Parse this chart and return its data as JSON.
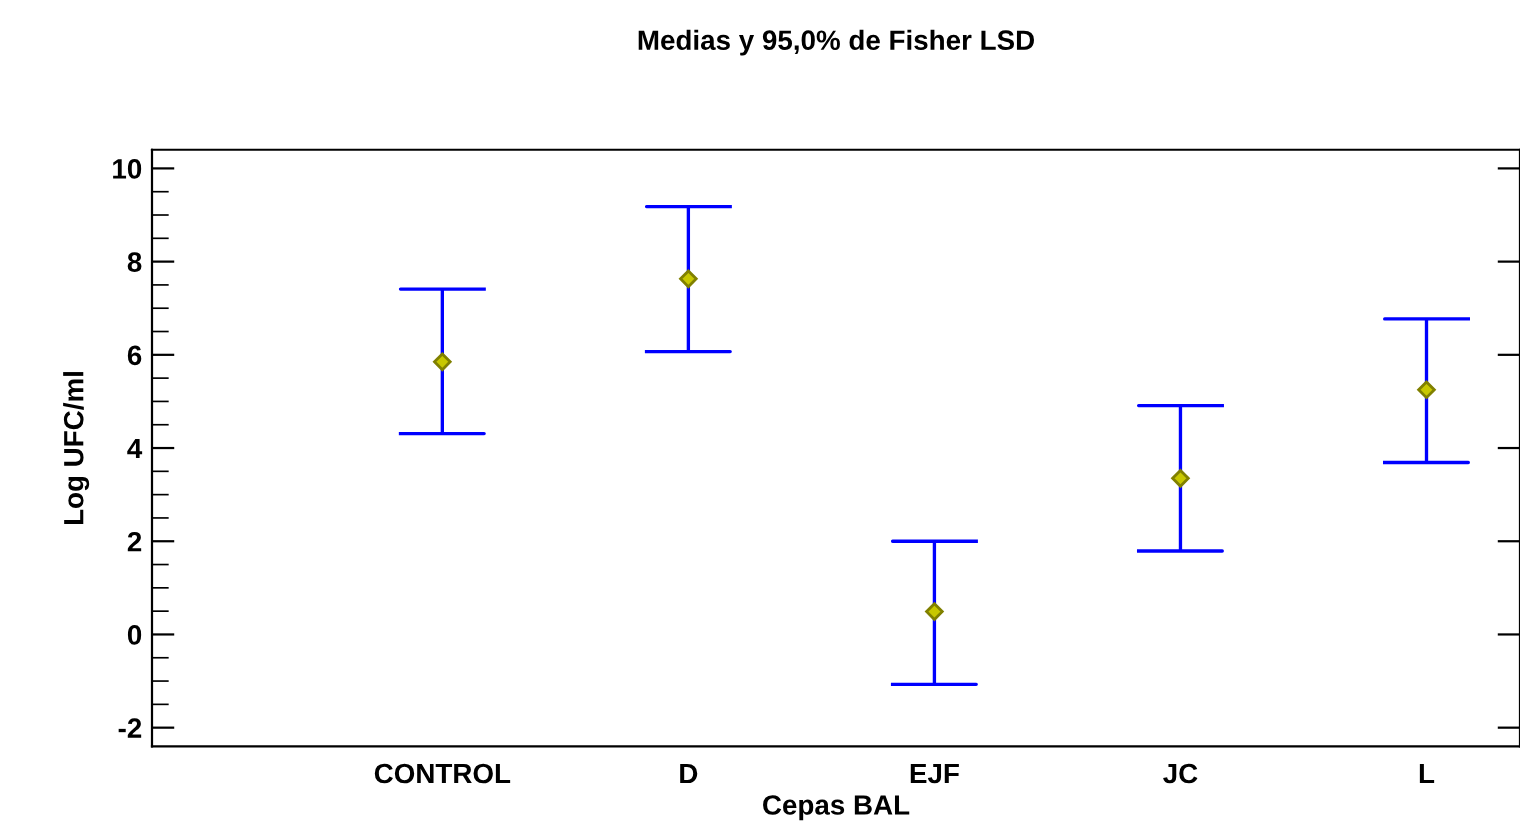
{
  "chart_data": {
    "type": "scatter",
    "title": "Medias y 95,0% de Fisher LSD",
    "xlabel": "Cepas BAL",
    "ylabel": "Log UFC/ml",
    "categories": [
      "CONTROL",
      "D",
      "EJF",
      "JC",
      "L"
    ],
    "values": [
      5.85,
      7.63,
      0.49,
      3.35,
      5.25
    ],
    "errors": [
      [
        4.31,
        7.41
      ],
      [
        6.07,
        9.18
      ],
      [
        -1.07,
        2.0
      ],
      [
        1.79,
        4.91
      ],
      [
        3.69,
        6.77
      ]
    ],
    "color": "#c8c800",
    "ylim": [
      -2.4,
      10.4
    ],
    "yticks": [
      -2,
      0,
      2,
      4,
      6,
      8,
      10
    ],
    "marker": "diamond",
    "grid": false,
    "legend": false
  }
}
